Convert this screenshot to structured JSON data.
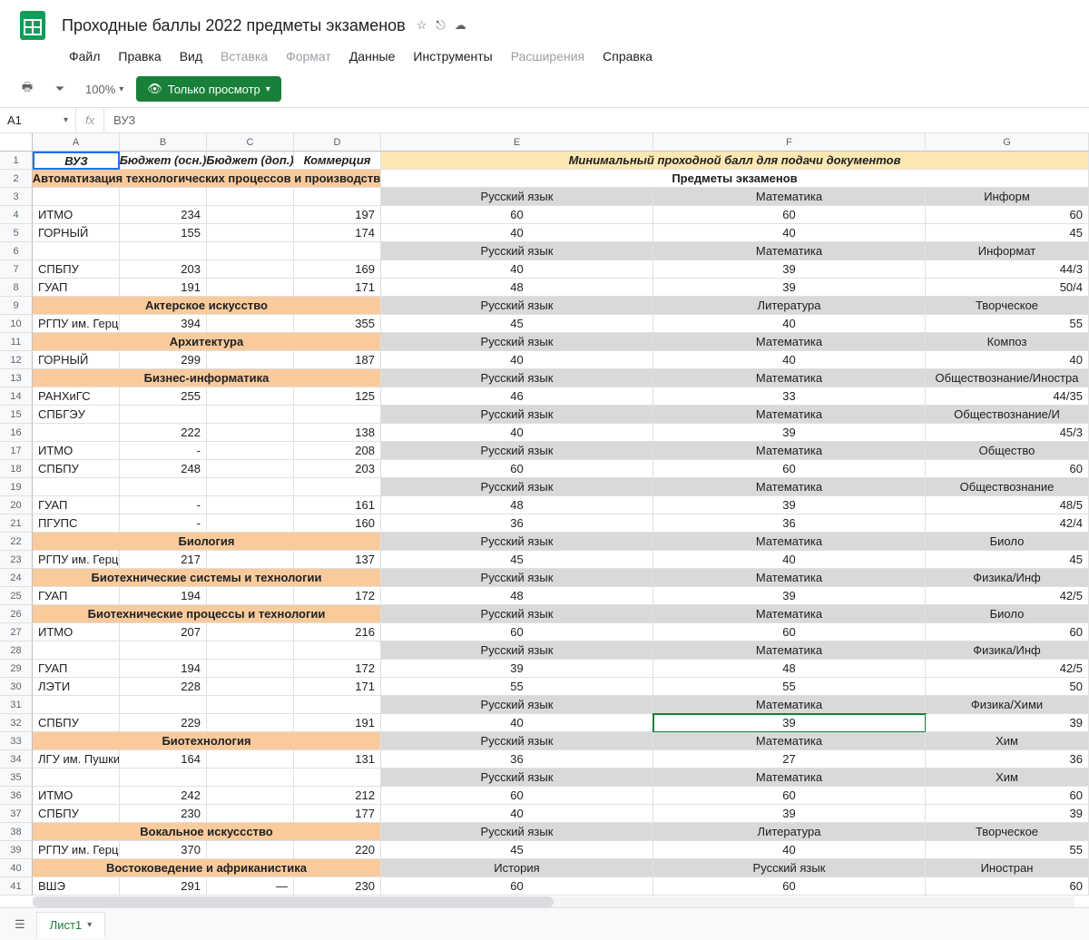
{
  "doc": {
    "title": "Проходные баллы 2022 предметы экзаменов"
  },
  "menus": {
    "file": "Файл",
    "edit": "Правка",
    "view": "Вид",
    "insert": "Вставка",
    "format": "Формат",
    "data": "Данные",
    "tools": "Инструменты",
    "extensions": "Расширения",
    "help": "Справка"
  },
  "toolbar": {
    "zoom": "100%",
    "view_only": "Только просмотр"
  },
  "namebox": {
    "ref": "A1",
    "fx": "fx",
    "formula": "ВУЗ"
  },
  "columns": [
    "A",
    "B",
    "C",
    "D",
    "E",
    "F",
    "G"
  ],
  "sheet": {
    "name": "Лист1"
  },
  "active_cell": {
    "row": 32,
    "col": 6
  },
  "rows": [
    {
      "n": 1,
      "cells": [
        {
          "v": "ВУЗ",
          "cls": "bold italic center selected-a1"
        },
        {
          "v": "Бюджет (осн.)",
          "cls": "bold italic center"
        },
        {
          "v": "Бюджет (доп.)",
          "cls": "bold italic center"
        },
        {
          "v": "Коммерция",
          "cls": "bold italic center"
        },
        {
          "v": "Минимальный проходной балл для подачи документов",
          "cls": "bold italic center yellow",
          "span": 3
        }
      ]
    },
    {
      "n": 2,
      "cells": [
        {
          "v": "Автоматизация технологических процессов и производств",
          "cls": "bold center orange",
          "span": 4
        },
        {
          "v": "Предметы экзаменов",
          "cls": "bold center",
          "span": 3
        }
      ]
    },
    {
      "n": 3,
      "cells": [
        {
          "v": ""
        },
        {
          "v": ""
        },
        {
          "v": ""
        },
        {
          "v": ""
        },
        {
          "v": "Русский язык",
          "cls": "center gray"
        },
        {
          "v": "Математика",
          "cls": "center gray"
        },
        {
          "v": "Информ",
          "cls": "center gray"
        }
      ]
    },
    {
      "n": 4,
      "cells": [
        {
          "v": "ИТМО"
        },
        {
          "v": "234",
          "cls": "right"
        },
        {
          "v": ""
        },
        {
          "v": "197",
          "cls": "right"
        },
        {
          "v": "60",
          "cls": "center"
        },
        {
          "v": "60",
          "cls": "center"
        },
        {
          "v": "60",
          "cls": "right"
        }
      ]
    },
    {
      "n": 5,
      "cells": [
        {
          "v": "ГОРНЫЙ"
        },
        {
          "v": "155",
          "cls": "right"
        },
        {
          "v": ""
        },
        {
          "v": "174",
          "cls": "right"
        },
        {
          "v": "40",
          "cls": "center"
        },
        {
          "v": "40",
          "cls": "center"
        },
        {
          "v": "45",
          "cls": "right"
        }
      ]
    },
    {
      "n": 6,
      "cells": [
        {
          "v": ""
        },
        {
          "v": ""
        },
        {
          "v": ""
        },
        {
          "v": ""
        },
        {
          "v": "Русский язык",
          "cls": "center gray"
        },
        {
          "v": "Математика",
          "cls": "center gray"
        },
        {
          "v": "Информат",
          "cls": "center gray"
        }
      ]
    },
    {
      "n": 7,
      "cells": [
        {
          "v": "СПБПУ"
        },
        {
          "v": "203",
          "cls": "right"
        },
        {
          "v": ""
        },
        {
          "v": "169",
          "cls": "right"
        },
        {
          "v": "40",
          "cls": "center"
        },
        {
          "v": "39",
          "cls": "center"
        },
        {
          "v": "44/3",
          "cls": "right"
        }
      ]
    },
    {
      "n": 8,
      "cells": [
        {
          "v": "ГУАП"
        },
        {
          "v": "191",
          "cls": "right"
        },
        {
          "v": ""
        },
        {
          "v": "171",
          "cls": "right"
        },
        {
          "v": "48",
          "cls": "center"
        },
        {
          "v": "39",
          "cls": "center"
        },
        {
          "v": "50/4",
          "cls": "right"
        }
      ]
    },
    {
      "n": 9,
      "cells": [
        {
          "v": "Актерское искусство",
          "cls": "bold center orange",
          "span": 4
        },
        {
          "v": "Русский язык",
          "cls": "center gray"
        },
        {
          "v": "Литература",
          "cls": "center gray"
        },
        {
          "v": "Творческое",
          "cls": "center gray"
        }
      ]
    },
    {
      "n": 10,
      "cells": [
        {
          "v": "РГПУ им. Герцен"
        },
        {
          "v": "394",
          "cls": "right"
        },
        {
          "v": ""
        },
        {
          "v": "355",
          "cls": "right"
        },
        {
          "v": "45",
          "cls": "center"
        },
        {
          "v": "40",
          "cls": "center"
        },
        {
          "v": "55",
          "cls": "right"
        }
      ]
    },
    {
      "n": 11,
      "cells": [
        {
          "v": "Архитектура",
          "cls": "bold center orange",
          "span": 4
        },
        {
          "v": "Русский язык",
          "cls": "center gray"
        },
        {
          "v": "Математика",
          "cls": "center gray"
        },
        {
          "v": "Композ",
          "cls": "center gray"
        }
      ]
    },
    {
      "n": 12,
      "cells": [
        {
          "v": "ГОРНЫЙ"
        },
        {
          "v": "299",
          "cls": "right"
        },
        {
          "v": ""
        },
        {
          "v": "187",
          "cls": "right"
        },
        {
          "v": "40",
          "cls": "center"
        },
        {
          "v": "40",
          "cls": "center"
        },
        {
          "v": "40",
          "cls": "right"
        }
      ]
    },
    {
      "n": 13,
      "cells": [
        {
          "v": "Бизнес-информатика",
          "cls": "bold center orange",
          "span": 4
        },
        {
          "v": "Русский язык",
          "cls": "center gray"
        },
        {
          "v": "Математика",
          "cls": "center gray"
        },
        {
          "v": "Обществознание/Иностра",
          "cls": "center gray"
        }
      ]
    },
    {
      "n": 14,
      "cells": [
        {
          "v": "РАНХиГС"
        },
        {
          "v": "255",
          "cls": "right"
        },
        {
          "v": ""
        },
        {
          "v": "125",
          "cls": "right"
        },
        {
          "v": "46",
          "cls": "center"
        },
        {
          "v": "33",
          "cls": "center"
        },
        {
          "v": "44/35",
          "cls": "right"
        }
      ]
    },
    {
      "n": 15,
      "cells": [
        {
          "v": "СПБГЭУ"
        },
        {
          "v": ""
        },
        {
          "v": ""
        },
        {
          "v": ""
        },
        {
          "v": "Русский язык",
          "cls": "center gray"
        },
        {
          "v": "Математика",
          "cls": "center gray"
        },
        {
          "v": "Обществознание/И",
          "cls": "center gray"
        }
      ]
    },
    {
      "n": 16,
      "cells": [
        {
          "v": ""
        },
        {
          "v": "222",
          "cls": "right"
        },
        {
          "v": ""
        },
        {
          "v": "138",
          "cls": "right"
        },
        {
          "v": "40",
          "cls": "center"
        },
        {
          "v": "39",
          "cls": "center"
        },
        {
          "v": "45/3",
          "cls": "right"
        }
      ]
    },
    {
      "n": 17,
      "cells": [
        {
          "v": "ИТМО"
        },
        {
          "v": "-",
          "cls": "right"
        },
        {
          "v": ""
        },
        {
          "v": "208",
          "cls": "right"
        },
        {
          "v": "Русский язык",
          "cls": "center gray"
        },
        {
          "v": "Математика",
          "cls": "center gray"
        },
        {
          "v": "Общество",
          "cls": "center gray"
        }
      ]
    },
    {
      "n": 18,
      "cells": [
        {
          "v": "СПБПУ"
        },
        {
          "v": "248",
          "cls": "right"
        },
        {
          "v": ""
        },
        {
          "v": "203",
          "cls": "right"
        },
        {
          "v": "60",
          "cls": "center"
        },
        {
          "v": "60",
          "cls": "center"
        },
        {
          "v": "60",
          "cls": "right"
        }
      ]
    },
    {
      "n": 19,
      "cells": [
        {
          "v": ""
        },
        {
          "v": ""
        },
        {
          "v": ""
        },
        {
          "v": ""
        },
        {
          "v": "Русский язык",
          "cls": "center gray"
        },
        {
          "v": "Математика",
          "cls": "center gray"
        },
        {
          "v": "Обществознание",
          "cls": "center gray"
        }
      ]
    },
    {
      "n": 20,
      "cells": [
        {
          "v": "ГУАП"
        },
        {
          "v": "-",
          "cls": "right"
        },
        {
          "v": ""
        },
        {
          "v": "161",
          "cls": "right"
        },
        {
          "v": "48",
          "cls": "center"
        },
        {
          "v": "39",
          "cls": "center"
        },
        {
          "v": "48/5",
          "cls": "right"
        }
      ]
    },
    {
      "n": 21,
      "cells": [
        {
          "v": "ПГУПС"
        },
        {
          "v": "-",
          "cls": "right"
        },
        {
          "v": ""
        },
        {
          "v": "160",
          "cls": "right"
        },
        {
          "v": "36",
          "cls": "center"
        },
        {
          "v": "36",
          "cls": "center"
        },
        {
          "v": "42/4",
          "cls": "right"
        }
      ]
    },
    {
      "n": 22,
      "cells": [
        {
          "v": "Биология",
          "cls": "bold center orange",
          "span": 4
        },
        {
          "v": "Русский язык",
          "cls": "center gray"
        },
        {
          "v": "Математика",
          "cls": "center gray"
        },
        {
          "v": "Биоло",
          "cls": "center gray"
        }
      ]
    },
    {
      "n": 23,
      "cells": [
        {
          "v": "РГПУ им. Герцен"
        },
        {
          "v": "217",
          "cls": "right"
        },
        {
          "v": ""
        },
        {
          "v": "137",
          "cls": "right"
        },
        {
          "v": "45",
          "cls": "center"
        },
        {
          "v": "40",
          "cls": "center"
        },
        {
          "v": "45",
          "cls": "right"
        }
      ]
    },
    {
      "n": 24,
      "cells": [
        {
          "v": "Биотехнические системы и технологии",
          "cls": "bold center orange",
          "span": 4
        },
        {
          "v": "Русский язык",
          "cls": "center gray"
        },
        {
          "v": "Математика",
          "cls": "center gray"
        },
        {
          "v": "Физика/Инф",
          "cls": "center gray"
        }
      ]
    },
    {
      "n": 25,
      "cells": [
        {
          "v": "ГУАП"
        },
        {
          "v": "194",
          "cls": "right"
        },
        {
          "v": ""
        },
        {
          "v": "172",
          "cls": "right"
        },
        {
          "v": "48",
          "cls": "center"
        },
        {
          "v": "39",
          "cls": "center"
        },
        {
          "v": "42/5",
          "cls": "right"
        }
      ]
    },
    {
      "n": 26,
      "cells": [
        {
          "v": "Биотехнические процессы и технологии",
          "cls": "bold center orange",
          "span": 4
        },
        {
          "v": "Русский язык",
          "cls": "center gray"
        },
        {
          "v": "Математика",
          "cls": "center gray"
        },
        {
          "v": "Биоло",
          "cls": "center gray"
        }
      ]
    },
    {
      "n": 27,
      "cells": [
        {
          "v": "ИТМО"
        },
        {
          "v": "207",
          "cls": "right"
        },
        {
          "v": ""
        },
        {
          "v": "216",
          "cls": "right"
        },
        {
          "v": "60",
          "cls": "center"
        },
        {
          "v": "60",
          "cls": "center"
        },
        {
          "v": "60",
          "cls": "right"
        }
      ]
    },
    {
      "n": 28,
      "cells": [
        {
          "v": ""
        },
        {
          "v": ""
        },
        {
          "v": ""
        },
        {
          "v": ""
        },
        {
          "v": "Русский язык",
          "cls": "center gray"
        },
        {
          "v": "Математика",
          "cls": "center gray"
        },
        {
          "v": "Физика/Инф",
          "cls": "center gray"
        }
      ]
    },
    {
      "n": 29,
      "cells": [
        {
          "v": "ГУАП"
        },
        {
          "v": "194",
          "cls": "right"
        },
        {
          "v": ""
        },
        {
          "v": "172",
          "cls": "right"
        },
        {
          "v": "39",
          "cls": "center"
        },
        {
          "v": "48",
          "cls": "center"
        },
        {
          "v": "42/5",
          "cls": "right"
        }
      ]
    },
    {
      "n": 30,
      "cells": [
        {
          "v": "ЛЭТИ"
        },
        {
          "v": "228",
          "cls": "right"
        },
        {
          "v": ""
        },
        {
          "v": "171",
          "cls": "right"
        },
        {
          "v": "55",
          "cls": "center"
        },
        {
          "v": "55",
          "cls": "center"
        },
        {
          "v": "50",
          "cls": "right"
        }
      ]
    },
    {
      "n": 31,
      "cells": [
        {
          "v": ""
        },
        {
          "v": ""
        },
        {
          "v": ""
        },
        {
          "v": ""
        },
        {
          "v": "Русский язык",
          "cls": "center gray"
        },
        {
          "v": "Математика",
          "cls": "center gray"
        },
        {
          "v": "Физика/Хими",
          "cls": "center gray"
        }
      ]
    },
    {
      "n": 32,
      "cells": [
        {
          "v": "СПБПУ"
        },
        {
          "v": "229",
          "cls": "right"
        },
        {
          "v": ""
        },
        {
          "v": "191",
          "cls": "right"
        },
        {
          "v": "40",
          "cls": "center"
        },
        {
          "v": "39",
          "cls": "center"
        },
        {
          "v": "39",
          "cls": "right"
        }
      ]
    },
    {
      "n": 33,
      "cells": [
        {
          "v": "Биотехнология",
          "cls": "bold center orange",
          "span": 4
        },
        {
          "v": "Русский язык",
          "cls": "center gray"
        },
        {
          "v": "Математика",
          "cls": "center gray"
        },
        {
          "v": "Хим",
          "cls": "center gray"
        }
      ]
    },
    {
      "n": 34,
      "cells": [
        {
          "v": "ЛГУ им. Пушкин"
        },
        {
          "v": "164",
          "cls": "right"
        },
        {
          "v": ""
        },
        {
          "v": "131",
          "cls": "right"
        },
        {
          "v": "36",
          "cls": "center"
        },
        {
          "v": "27",
          "cls": "center"
        },
        {
          "v": "36",
          "cls": "right"
        }
      ]
    },
    {
      "n": 35,
      "cells": [
        {
          "v": ""
        },
        {
          "v": ""
        },
        {
          "v": ""
        },
        {
          "v": ""
        },
        {
          "v": "Русский язык",
          "cls": "center gray"
        },
        {
          "v": "Математика",
          "cls": "center gray"
        },
        {
          "v": "Хим",
          "cls": "center gray"
        }
      ]
    },
    {
      "n": 36,
      "cells": [
        {
          "v": "ИТМО"
        },
        {
          "v": "242",
          "cls": "right"
        },
        {
          "v": ""
        },
        {
          "v": "212",
          "cls": "right"
        },
        {
          "v": "60",
          "cls": "center"
        },
        {
          "v": "60",
          "cls": "center"
        },
        {
          "v": "60",
          "cls": "right"
        }
      ]
    },
    {
      "n": 37,
      "cells": [
        {
          "v": "СПБПУ"
        },
        {
          "v": "230",
          "cls": "right"
        },
        {
          "v": ""
        },
        {
          "v": "177",
          "cls": "right"
        },
        {
          "v": "40",
          "cls": "center"
        },
        {
          "v": "39",
          "cls": "center"
        },
        {
          "v": "39",
          "cls": "right"
        }
      ]
    },
    {
      "n": 38,
      "cells": [
        {
          "v": "Вокальное искуссство",
          "cls": "bold center orange",
          "span": 4
        },
        {
          "v": "Русский язык",
          "cls": "center gray"
        },
        {
          "v": "Литература",
          "cls": "center gray"
        },
        {
          "v": "Творческое",
          "cls": "center gray"
        }
      ]
    },
    {
      "n": 39,
      "cells": [
        {
          "v": "РГПУ им. Герцен"
        },
        {
          "v": "370",
          "cls": "right"
        },
        {
          "v": ""
        },
        {
          "v": "220",
          "cls": "right"
        },
        {
          "v": "45",
          "cls": "center"
        },
        {
          "v": "40",
          "cls": "center"
        },
        {
          "v": "55",
          "cls": "right"
        }
      ]
    },
    {
      "n": 40,
      "cells": [
        {
          "v": "Востоковедение и африканистика",
          "cls": "bold center orange",
          "span": 4
        },
        {
          "v": "История",
          "cls": "center gray"
        },
        {
          "v": "Русский язык",
          "cls": "center gray"
        },
        {
          "v": "Иностран",
          "cls": "center gray"
        }
      ]
    },
    {
      "n": 41,
      "cells": [
        {
          "v": "ВШЭ"
        },
        {
          "v": "291",
          "cls": "right"
        },
        {
          "v": "—",
          "cls": "right"
        },
        {
          "v": "230",
          "cls": "right"
        },
        {
          "v": "60",
          "cls": "center"
        },
        {
          "v": "60",
          "cls": "center"
        },
        {
          "v": "60",
          "cls": "right"
        }
      ]
    }
  ]
}
